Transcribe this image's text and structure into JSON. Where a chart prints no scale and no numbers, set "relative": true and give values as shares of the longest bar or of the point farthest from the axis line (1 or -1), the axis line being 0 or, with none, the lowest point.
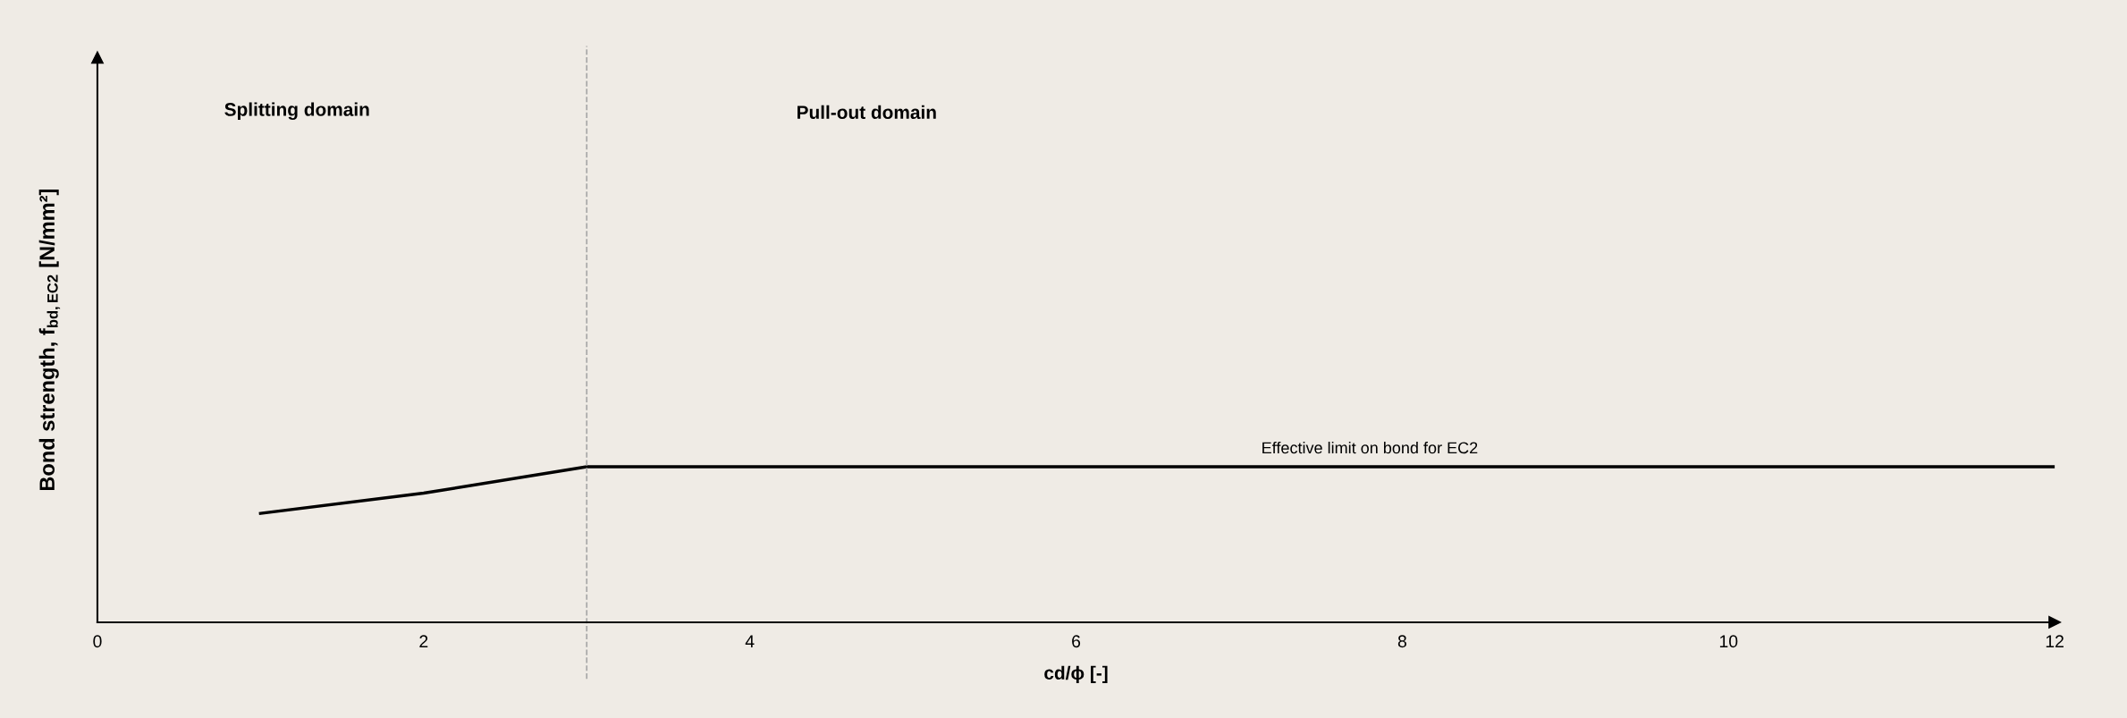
{
  "chart_data": {
    "type": "line",
    "relative": true,
    "xlabel": "cd/ϕ [-]",
    "ylabel": "Bond strength, f$_{bd,EC2}$ [N/mm²]",
    "x": [
      1,
      2,
      3,
      12
    ],
    "series": [
      {
        "color": "#000000",
        "values": [
          0.7,
          0.83,
          1,
          1
        ]
      }
    ],
    "xlim": [
      0,
      12
    ],
    "xticks": [
      0,
      2,
      4,
      6,
      8,
      10,
      12
    ],
    "ref_lines": [
      {
        "axis": "x",
        "value": 3,
        "color": "#a6a6a6",
        "line_style": "dashed"
      }
    ],
    "annotations": [
      "Splitting domain",
      "Pull-out domain",
      {
        "text": "Effective limit on bond for EC2",
        "x": 7.8,
        "y": 1
      }
    ],
    "grid": false,
    "legend": false,
    "marker": "none",
    "line_style": "solid"
  }
}
